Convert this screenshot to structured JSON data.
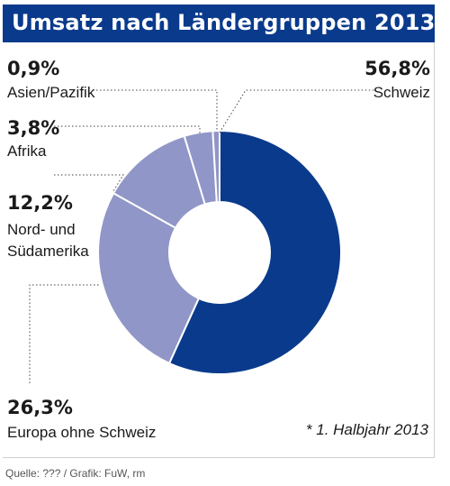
{
  "header": {
    "title": "Umsatz nach Ländergruppen 2013*"
  },
  "chart_data": {
    "type": "pie",
    "variant": "donut",
    "title": "Umsatz nach Ländergruppen 2013*",
    "slices": [
      {
        "label": "Schweiz",
        "value": 56.8,
        "value_label": "56,8%",
        "color": "#0a3a8c"
      },
      {
        "label": "Europa ohne Schweiz",
        "value": 26.3,
        "value_label": "26,3%",
        "color": "#9096c7"
      },
      {
        "label": "Nord- und Südamerika",
        "label_lines": [
          "Nord- und",
          "Südamerika"
        ],
        "value": 12.2,
        "value_label": "12,2%",
        "color": "#9096c7"
      },
      {
        "label": "Afrika",
        "value": 3.8,
        "value_label": "3,8%",
        "color": "#9096c7"
      },
      {
        "label": "Asien/Pazifik",
        "value": 0.9,
        "value_label": "0,9%",
        "color": "#9096c7"
      }
    ]
  },
  "footnote": "* 1. Halbjahr 2013",
  "source": "Quelle: ??? / Grafik: FuW, rm"
}
